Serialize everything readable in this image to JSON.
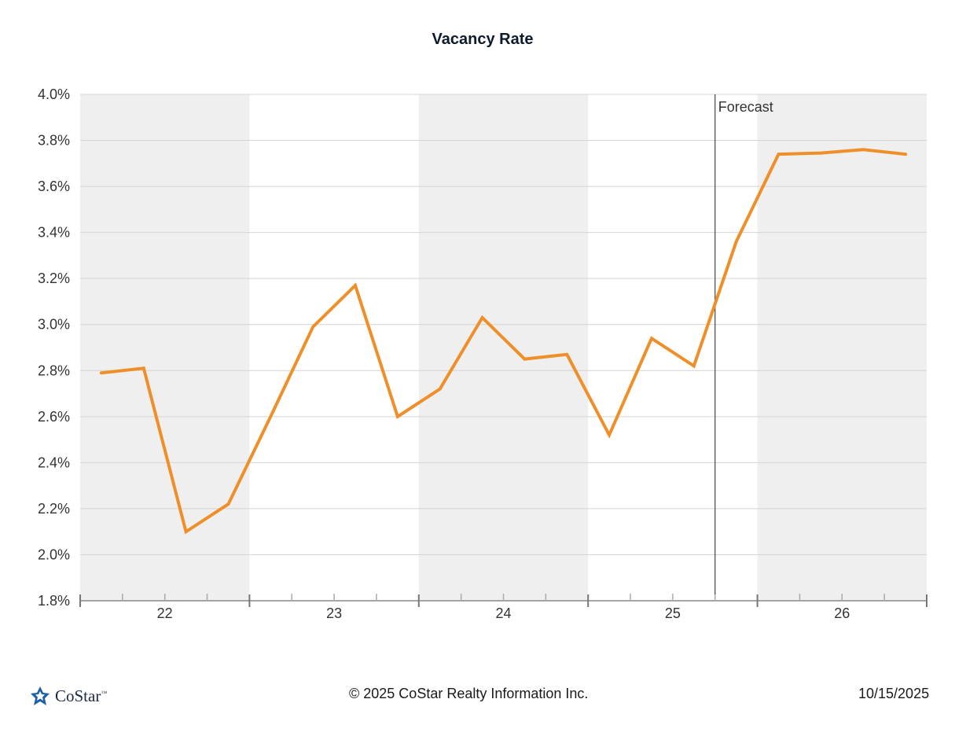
{
  "chart_data": {
    "type": "line",
    "title": "Vacancy Rate",
    "y_ticks": [
      "4.0%",
      "3.8%",
      "3.6%",
      "3.4%",
      "3.2%",
      "3.0%",
      "2.8%",
      "2.6%",
      "2.4%",
      "2.2%",
      "2.0%",
      "1.8%"
    ],
    "ylim": [
      1.8,
      4.0
    ],
    "x_ticks": [
      "22",
      "23",
      "24",
      "25",
      "26"
    ],
    "x_range_quarters": [
      0,
      20
    ],
    "shaded_years": [
      "22",
      "24",
      "26"
    ],
    "forecast_label": "Forecast",
    "forecast_start_quarter": 15,
    "series": [
      {
        "color": "#ef8f2a",
        "points": [
          {
            "q": 1,
            "v": 2.79
          },
          {
            "q": 3,
            "v": 2.81
          },
          {
            "q": 5,
            "v": 2.1
          },
          {
            "q": 7,
            "v": 2.22
          },
          {
            "q": 9,
            "v": 2.6
          },
          {
            "q": 11,
            "v": 2.99
          },
          {
            "q": 13,
            "v": 3.17
          },
          {
            "q": 15,
            "v": 2.6
          },
          {
            "q": 17,
            "v": 2.72
          },
          {
            "q": 19,
            "v": 3.03
          },
          {
            "q": 21,
            "v": 2.85
          },
          {
            "q": 23,
            "v": 2.87
          },
          {
            "q": 25,
            "v": 2.52
          },
          {
            "q": 27,
            "v": 2.94
          },
          {
            "q": 29,
            "v": 2.82
          },
          {
            "q": 31,
            "v": 3.36
          },
          {
            "q": 33,
            "v": 3.74
          },
          {
            "q": 35,
            "v": 3.745
          },
          {
            "q": 37,
            "v": 3.76
          },
          {
            "q": 39,
            "v": 3.74
          }
        ]
      }
    ],
    "grid": true
  },
  "footer": {
    "logo_text": "CoStar",
    "logo_tm": "™",
    "copyright": "© 2025 CoStar Realty Information Inc.",
    "date": "10/15/2025"
  }
}
